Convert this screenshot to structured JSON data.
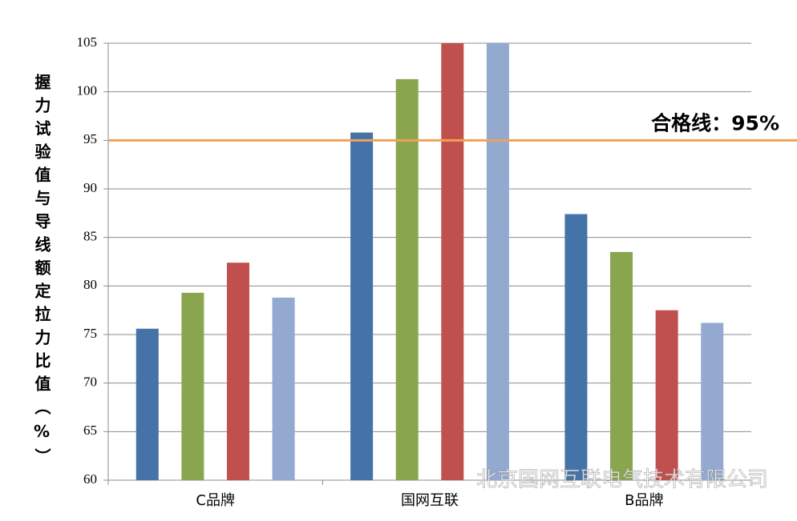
{
  "chart_data": {
    "type": "bar",
    "y_label": "握力试验值与导线额定拉力比值（%）",
    "categories": [
      "C品牌",
      "国网互联",
      "B品牌"
    ],
    "series": [
      {
        "color": "#4572a7",
        "values": [
          75.6,
          95.8,
          87.4
        ]
      },
      {
        "color": "#89a54e",
        "values": [
          79.3,
          101.3,
          83.5
        ]
      },
      {
        "color": "#c0504d",
        "values": [
          82.4,
          105,
          77.5
        ]
      },
      {
        "color": "#93a9cf",
        "values": [
          78.8,
          105,
          76.2
        ]
      }
    ],
    "ylim": [
      60,
      105
    ],
    "yticks": [
      60,
      65,
      70,
      75,
      80,
      85,
      90,
      95,
      100,
      105
    ],
    "grid": true,
    "reference": {
      "value": 95,
      "label": "合格线：95%",
      "color": "#f0a05a"
    },
    "watermark": "北京国网互联电气技术有限公司"
  }
}
